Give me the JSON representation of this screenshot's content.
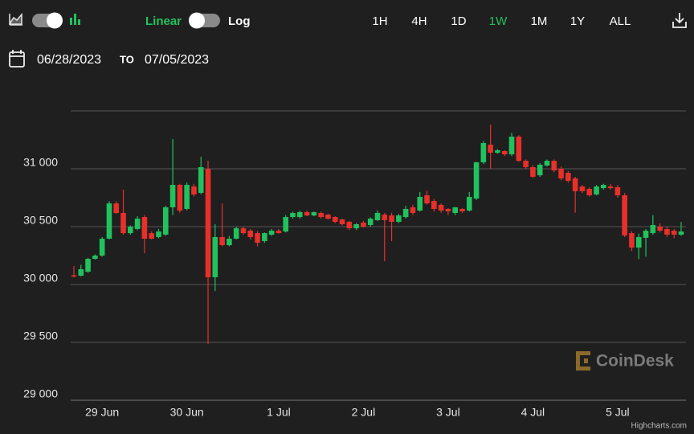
{
  "toolbar": {
    "linear": "Linear",
    "log": "Log",
    "ranges": [
      "1H",
      "4H",
      "1D",
      "1W",
      "1M",
      "1Y",
      "ALL"
    ],
    "active_range": "1W",
    "active_color": "#21c25e"
  },
  "date_range": {
    "from": "06/28/2023",
    "separator": "TO",
    "to": "07/05/2023"
  },
  "watermark": "CoinDesk",
  "credits": "Highcharts.com",
  "chart_data": {
    "type": "candlestick",
    "up_color": "#21c25e",
    "down_color": "#e8302a",
    "grid": true,
    "ylim": [
      29000,
      31500
    ],
    "yticks": [
      {
        "value": 29000,
        "label": "29 000"
      },
      {
        "value": 29500,
        "label": "29 500"
      },
      {
        "value": 30000,
        "label": "30 000"
      },
      {
        "value": 30500,
        "label": "30 500"
      },
      {
        "value": 31000,
        "label": "31 000"
      }
    ],
    "categories": [
      null,
      null,
      null,
      null,
      "29 Jun",
      null,
      null,
      null,
      null,
      null,
      null,
      null,
      null,
      null,
      null,
      null,
      "30 Jun",
      null,
      null,
      null,
      null,
      null,
      null,
      null,
      null,
      null,
      null,
      null,
      null,
      "1 Jul",
      null,
      null,
      null,
      null,
      null,
      null,
      null,
      null,
      null,
      null,
      null,
      "2 Jul",
      null,
      null,
      null,
      null,
      null,
      null,
      null,
      null,
      null,
      null,
      null,
      "3 Jul",
      null,
      null,
      null,
      null,
      null,
      null,
      null,
      null,
      null,
      null,
      null,
      "4 Jul",
      null,
      null,
      null,
      null,
      null,
      null,
      null,
      null,
      null,
      null,
      null,
      "5 Jul",
      null,
      null,
      null,
      null,
      null,
      null,
      null,
      null,
      null
    ],
    "open": [
      30080,
      30076,
      30111,
      30222,
      30250,
      30396,
      30701,
      30618,
      30444,
      30480,
      30583,
      30444,
      30410,
      30431,
      30667,
      30861,
      30653,
      30847,
      30792,
      31000,
      30063,
      30410,
      30340,
      30396,
      30486,
      30465,
      30444,
      30375,
      30431,
      30465,
      30458,
      30583,
      30583,
      30625,
      30597,
      30618,
      30604,
      30583,
      30562,
      30542,
      30486,
      30535,
      30514,
      30556,
      30604,
      30597,
      30542,
      30583,
      30667,
      30639,
      30771,
      30722,
      30688,
      30653,
      30618,
      30653,
      30639,
      30743,
      31056,
      31208,
      31139,
      31153,
      31125,
      31278,
      31069,
      31014,
      30944,
      31028,
      31069,
      31000,
      30965,
      30917,
      30847,
      30826,
      30778,
      30833,
      30847,
      30840,
      30771,
      30444,
      30319,
      30403,
      30444,
      30500,
      30479,
      30465,
      30431
    ],
    "high": [
      30160,
      30170,
      30230,
      30260,
      30410,
      30720,
      30720,
      30820,
      30510,
      30590,
      30600,
      30460,
      30480,
      30680,
      31257,
      30870,
      30880,
      30870,
      31104,
      31070,
      30520,
      30700,
      30420,
      30500,
      30500,
      30480,
      30460,
      30450,
      30480,
      30480,
      30600,
      30630,
      30640,
      30640,
      30630,
      30630,
      30610,
      30590,
      30570,
      30550,
      30530,
      30550,
      30580,
      30640,
      30620,
      30620,
      30610,
      30680,
      30690,
      30800,
      30810,
      30740,
      30700,
      30660,
      30670,
      30660,
      30800,
      31060,
      31240,
      31382,
      31170,
      31160,
      31310,
      31290,
      31080,
      31030,
      31050,
      31080,
      31080,
      31020,
      30980,
      30930,
      30860,
      30840,
      30860,
      30870,
      30870,
      30860,
      30790,
      30460,
      30440,
      30480,
      30600,
      30530,
      30500,
      30480,
      30540
    ],
    "low": [
      30060,
      30070,
      30100,
      30215,
      30240,
      30390,
      30610,
      30430,
      30430,
      30470,
      30270,
      30390,
      30400,
      30420,
      30600,
      30620,
      30640,
      30760,
      30780,
      29486,
      29944,
      30330,
      30330,
      30390,
      30430,
      30390,
      30330,
      30360,
      30420,
      30440,
      30450,
      30570,
      30570,
      30590,
      30590,
      30570,
      30560,
      30530,
      30510,
      30470,
      30470,
      30490,
      30500,
      30550,
      30201,
      30375,
      30530,
      30570,
      30600,
      30630,
      30690,
      30630,
      30620,
      30600,
      30600,
      30620,
      30630,
      30730,
      31040,
      31000,
      31130,
      31110,
      31110,
      31060,
      31000,
      30920,
      30930,
      31020,
      30970,
      30900,
      30880,
      30620,
      30790,
      30760,
      30770,
      30820,
      30820,
      30750,
      30410,
      30290,
      30220,
      30240,
      30430,
      30450,
      30410,
      30400,
      30420
    ],
    "close": [
      30070,
      30132,
      30222,
      30250,
      30396,
      30701,
      30618,
      30444,
      30500,
      30569,
      30396,
      30396,
      30458,
      30667,
      30861,
      30639,
      30861,
      30778,
      31014,
      30063,
      30410,
      30340,
      30396,
      30486,
      30444,
      30410,
      30361,
      30444,
      30465,
      30444,
      30583,
      30618,
      30625,
      30597,
      30625,
      30583,
      30569,
      30542,
      30521,
      30486,
      30521,
      30500,
      30569,
      30618,
      30556,
      30542,
      30597,
      30653,
      30618,
      30757,
      30701,
      30653,
      30639,
      30632,
      30667,
      30632,
      30757,
      31056,
      31222,
      31139,
      31160,
      31125,
      31278,
      31069,
      31014,
      30931,
      31035,
      31069,
      30986,
      30917,
      30896,
      30806,
      30806,
      30771,
      30847,
      30861,
      30833,
      30771,
      30424,
      30319,
      30410,
      30465,
      30514,
      30465,
      30431,
      30431,
      30458
    ]
  }
}
